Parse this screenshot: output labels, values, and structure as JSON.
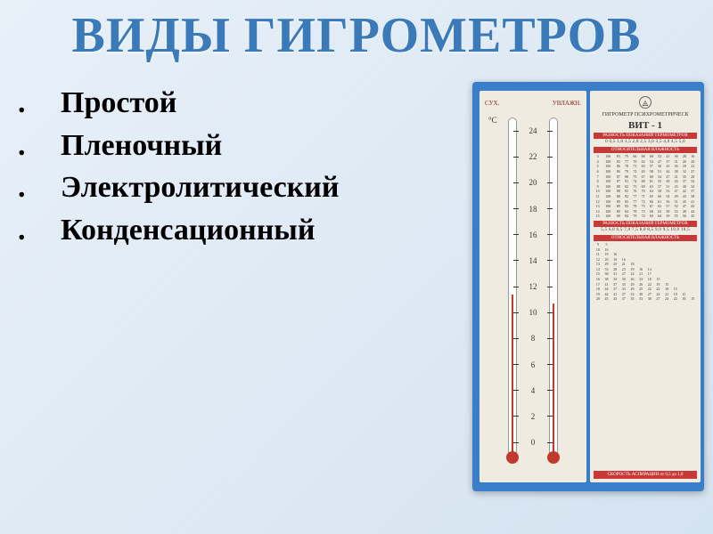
{
  "slide": {
    "title": "ВИДЫ ГИГРОМЕТРОВ",
    "title_color": "#3a7ab8",
    "title_fontsize": 56,
    "background_gradient_start": "#e8f0f8",
    "background_gradient_end": "#d4e3f0"
  },
  "list": {
    "items": [
      {
        "marker": ".",
        "text": "Простой"
      },
      {
        "marker": ".",
        "text": "Пленочный"
      },
      {
        "marker": ".",
        "text": "Электролитический"
      },
      {
        "marker": ".",
        "text": "Конденсационный"
      }
    ],
    "text_color": "#000000",
    "fontsize": 34
  },
  "hygrometer": {
    "device_color": "#3a7dc8",
    "panel_color": "#f0ebe0",
    "mercury_color": "#c0392b",
    "header_color": "#c73838",
    "thermometer_labels": {
      "left": "СУХ.",
      "right": "УВЛАЖН.",
      "unit": "°C"
    },
    "scale": {
      "min": 0,
      "max": 24,
      "step": 2,
      "values": [
        24,
        22,
        20,
        18,
        16,
        14,
        12,
        10,
        8,
        6,
        4,
        2,
        0
      ]
    },
    "table": {
      "title": "ГИГРОМЕТР ПСИХРОМЕТРИЧЕСК",
      "model": "ВИТ - 1",
      "header1": "РАЗНОСТЬ ПОКАЗАНИЙ ТЕРМОМЕТРОВ",
      "column_headers": "0 0,5 1,0 1,5 2,0 2,5 3,0 3,5 4,0 4,5 5,0",
      "header2": "ОТНОСИТЕЛЬНАЯ ВЛАЖНОСТЬ",
      "data_rows": [
        [
          "3",
          "100",
          "83",
          "75",
          "66",
          "68",
          "60",
          "52",
          "41",
          "36",
          "28",
          "16"
        ],
        [
          "4",
          "100",
          "83",
          "77",
          "70",
          "62",
          "54",
          "47",
          "37",
          "31",
          "26",
          "20"
        ],
        [
          "5",
          "100",
          "86",
          "78",
          "71",
          "63",
          "57",
          "50",
          "43",
          "36",
          "29",
          "22"
        ],
        [
          "6",
          "100",
          "86",
          "79",
          "72",
          "65",
          "58",
          "51",
          "44",
          "38",
          "32",
          "27"
        ],
        [
          "7",
          "100",
          "87",
          "80",
          "73",
          "67",
          "60",
          "54",
          "47",
          "41",
          "35",
          "28"
        ],
        [
          "8",
          "100",
          "87",
          "81",
          "74",
          "68",
          "61",
          "55",
          "49",
          "43",
          "37",
          "32"
        ],
        [
          "9",
          "100",
          "88",
          "82",
          "75",
          "69",
          "63",
          "57",
          "51",
          "45",
          "40",
          "34"
        ],
        [
          "10",
          "100",
          "88",
          "82",
          "76",
          "70",
          "64",
          "58",
          "53",
          "47",
          "42",
          "37"
        ],
        [
          "11",
          "100",
          "88",
          "82",
          "77",
          "71",
          "65",
          "60",
          "54",
          "49",
          "43",
          "38"
        ],
        [
          "12",
          "100",
          "89",
          "83",
          "77",
          "72",
          "66",
          "61",
          "56",
          "51",
          "45",
          "41"
        ],
        [
          "13",
          "100",
          "89",
          "83",
          "78",
          "73",
          "67",
          "62",
          "57",
          "52",
          "47",
          "42"
        ],
        [
          "14",
          "100",
          "89",
          "84",
          "78",
          "73",
          "68",
          "63",
          "58",
          "53",
          "49",
          "44"
        ],
        [
          "15",
          "100",
          "90",
          "84",
          "79",
          "74",
          "69",
          "64",
          "59",
          "55",
          "50",
          "45"
        ]
      ],
      "header3": "РАЗНОСТЬ ПОКАЗАНИЙ ТЕРМОМЕТРОВ",
      "column_headers2": "5,5 6,0 6,5 7,0 7,5 8,0 8,5 9,0 9,5 10,0 10,5",
      "header4": "ОТНОСИТЕЛЬНАЯ ВЛАЖНОСТЬ",
      "data_rows2": [
        [
          "9",
          "5"
        ],
        [
          "10",
          "16"
        ],
        [
          "11",
          "19",
          "16"
        ],
        [
          "12",
          "20",
          "19",
          "16"
        ],
        [
          "13",
          "29",
          "25",
          "21",
          "18"
        ],
        [
          "14",
          "33",
          "28",
          "23",
          "19",
          "16",
          "14"
        ],
        [
          "15",
          "38",
          "31",
          "27",
          "24",
          "21",
          "17"
        ],
        [
          "16",
          "38",
          "33",
          "30",
          "26",
          "23",
          "18",
          "15"
        ],
        [
          "17",
          "41",
          "37",
          "33",
          "29",
          "26",
          "22",
          "19",
          "15"
        ],
        [
          "18",
          "44",
          "37",
          "33",
          "29",
          "25",
          "22",
          "22",
          "18",
          "15"
        ],
        [
          "19",
          "44",
          "41",
          "37",
          "33",
          "30",
          "27",
          "24",
          "22",
          "19",
          "15"
        ],
        [
          "20",
          "45",
          "43",
          "37",
          "35",
          "33",
          "30",
          "27",
          "24",
          "22",
          "18",
          "15"
        ]
      ],
      "footer": "СКОРОСТЬ АСПИРАЦИИ от 0,5 до 1,0"
    }
  }
}
